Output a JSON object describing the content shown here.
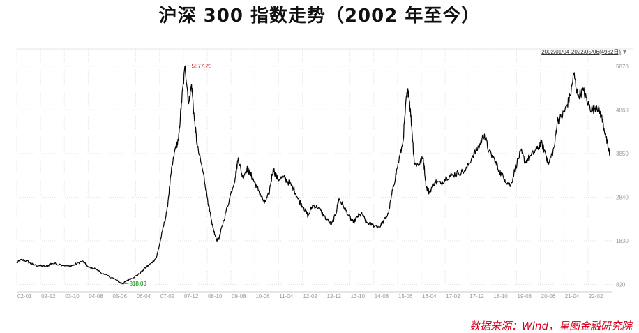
{
  "title": "沪深 300 指数走势（2002 年至今）",
  "source": "数据来源：Wind，星图金融研究院",
  "date_range": "2002/01/04-2022/05/06(4932日)",
  "colors": {
    "line": "#000000",
    "max": "#cc0000",
    "min": "#008800",
    "grid": "#e2e2e2",
    "axis_text": "#999999",
    "source": "#d6001c"
  },
  "chart_data": {
    "type": "line",
    "title": "沪深 300 指数走势（2002 年至今）",
    "xlabel": "",
    "ylabel": "",
    "y_ticks": [
      820,
      1830,
      2840,
      3850,
      4860,
      5870
    ],
    "x_ticks": [
      "02-01",
      "02-12",
      "03-10",
      "04-08",
      "05-06",
      "06-04",
      "07-02",
      "07-12",
      "08-10",
      "09-08",
      "10-06",
      "11-04",
      "12-02",
      "12-12",
      "13-10",
      "14-08",
      "15-06",
      "16-04",
      "17-02",
      "17-12",
      "18-10",
      "19-08",
      "20-06",
      "21-04",
      "22-02"
    ],
    "max_label": "5877.20",
    "min_label": "818.03",
    "grid": true,
    "series": [
      {
        "values": [
          [
            2002.0,
            1320
          ],
          [
            2002.15,
            1390
          ],
          [
            2002.35,
            1360
          ],
          [
            2002.55,
            1280
          ],
          [
            2002.8,
            1250
          ],
          [
            2003.0,
            1230
          ],
          [
            2003.2,
            1310
          ],
          [
            2003.5,
            1280
          ],
          [
            2003.8,
            1240
          ],
          [
            2004.0,
            1280
          ],
          [
            2004.25,
            1360
          ],
          [
            2004.45,
            1220
          ],
          [
            2004.7,
            1180
          ],
          [
            2005.0,
            1050
          ],
          [
            2005.3,
            970
          ],
          [
            2005.55,
            860
          ],
          [
            2005.65,
            840
          ],
          [
            2005.8,
            920
          ],
          [
            2006.0,
            980
          ],
          [
            2006.2,
            1060
          ],
          [
            2006.4,
            1200
          ],
          [
            2006.6,
            1300
          ],
          [
            2006.8,
            1450
          ],
          [
            2007.0,
            2050
          ],
          [
            2007.15,
            2500
          ],
          [
            2007.3,
            3400
          ],
          [
            2007.45,
            4000
          ],
          [
            2007.55,
            4150
          ],
          [
            2007.65,
            5000
          ],
          [
            2007.78,
            5877.2
          ],
          [
            2007.9,
            5000
          ],
          [
            2008.0,
            5450
          ],
          [
            2008.1,
            4600
          ],
          [
            2008.2,
            4000
          ],
          [
            2008.4,
            3400
          ],
          [
            2008.55,
            2800
          ],
          [
            2008.7,
            2200
          ],
          [
            2008.85,
            1850
          ],
          [
            2008.95,
            1900
          ],
          [
            2009.1,
            2300
          ],
          [
            2009.3,
            2800
          ],
          [
            2009.5,
            3300
          ],
          [
            2009.6,
            3750
          ],
          [
            2009.75,
            3300
          ],
          [
            2009.9,
            3500
          ],
          [
            2010.0,
            3400
          ],
          [
            2010.15,
            3200
          ],
          [
            2010.3,
            3000
          ],
          [
            2010.5,
            2700
          ],
          [
            2010.65,
            2900
          ],
          [
            2010.8,
            3500
          ],
          [
            2010.95,
            3250
          ],
          [
            2011.15,
            3300
          ],
          [
            2011.3,
            3200
          ],
          [
            2011.5,
            3050
          ],
          [
            2011.65,
            2800
          ],
          [
            2011.85,
            2600
          ],
          [
            2012.0,
            2400
          ],
          [
            2012.15,
            2650
          ],
          [
            2012.35,
            2600
          ],
          [
            2012.55,
            2400
          ],
          [
            2012.8,
            2200
          ],
          [
            2012.95,
            2450
          ],
          [
            2013.05,
            2800
          ],
          [
            2013.2,
            2650
          ],
          [
            2013.4,
            2400
          ],
          [
            2013.55,
            2250
          ],
          [
            2013.7,
            2400
          ],
          [
            2013.85,
            2450
          ],
          [
            2014.0,
            2250
          ],
          [
            2014.2,
            2200
          ],
          [
            2014.45,
            2150
          ],
          [
            2014.6,
            2300
          ],
          [
            2014.75,
            2450
          ],
          [
            2014.9,
            3000
          ],
          [
            2015.05,
            3500
          ],
          [
            2015.25,
            4100
          ],
          [
            2015.38,
            5200
          ],
          [
            2015.45,
            5300
          ],
          [
            2015.55,
            4500
          ],
          [
            2015.65,
            3600
          ],
          [
            2015.8,
            3600
          ],
          [
            2015.95,
            3750
          ],
          [
            2016.05,
            3100
          ],
          [
            2016.15,
            2950
          ],
          [
            2016.35,
            3200
          ],
          [
            2016.55,
            3150
          ],
          [
            2016.75,
            3300
          ],
          [
            2016.95,
            3350
          ],
          [
            2017.15,
            3400
          ],
          [
            2017.4,
            3450
          ],
          [
            2017.65,
            3800
          ],
          [
            2017.85,
            4000
          ],
          [
            2018.05,
            4300
          ],
          [
            2018.2,
            3900
          ],
          [
            2018.4,
            3700
          ],
          [
            2018.55,
            3450
          ],
          [
            2018.75,
            3250
          ],
          [
            2018.95,
            3100
          ],
          [
            2019.1,
            3500
          ],
          [
            2019.3,
            3900
          ],
          [
            2019.45,
            3650
          ],
          [
            2019.65,
            3800
          ],
          [
            2019.85,
            3950
          ],
          [
            2020.0,
            4100
          ],
          [
            2020.15,
            3850
          ],
          [
            2020.25,
            3600
          ],
          [
            2020.45,
            4000
          ],
          [
            2020.55,
            4600
          ],
          [
            2020.7,
            4700
          ],
          [
            2020.85,
            4900
          ],
          [
            2021.0,
            5200
          ],
          [
            2021.12,
            5700
          ],
          [
            2021.25,
            5200
          ],
          [
            2021.45,
            5300
          ],
          [
            2021.6,
            5000
          ],
          [
            2021.75,
            4850
          ],
          [
            2021.9,
            4950
          ],
          [
            2022.05,
            4750
          ],
          [
            2022.2,
            4300
          ],
          [
            2022.3,
            3950
          ],
          [
            2022.35,
            3850
          ]
        ]
      }
    ]
  }
}
